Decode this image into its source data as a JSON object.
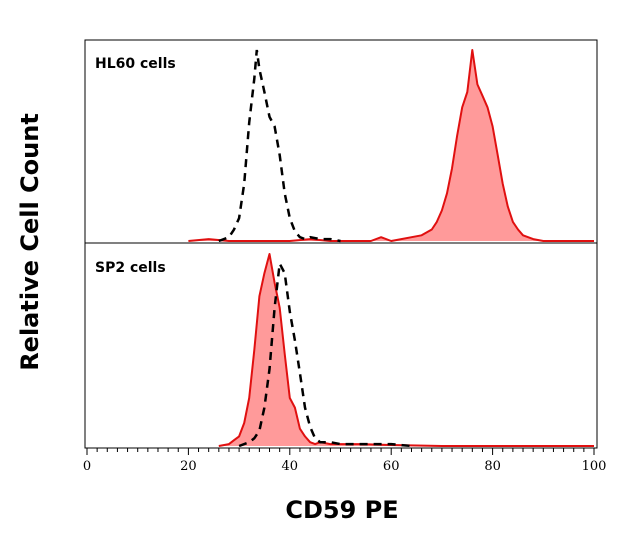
{
  "chart_data": {
    "type": "area",
    "xlabel": "CD59 PE",
    "ylabel": "Relative Cell Count",
    "xlim": [
      0,
      100
    ],
    "x_ticks": [
      "0",
      "20",
      "40",
      "60",
      "80",
      "100"
    ],
    "x_tick_values": [
      0,
      20,
      40,
      60,
      80,
      100
    ],
    "grid": false,
    "colors": {
      "stained_fill": "#ff9a9a",
      "stained_line": "#e01010",
      "control_line": "#000000"
    },
    "panels": [
      {
        "label": "HL60 cells",
        "series": [
          {
            "style": "stained-filled",
            "x": [
              20,
              24,
              28,
              36,
              40,
              44,
              48,
              56,
              58,
              60,
              62,
              64,
              66,
              68,
              69,
              70,
              71,
              72,
              73,
              74,
              75,
              76,
              77,
              78,
              79,
              80,
              81,
              82,
              83,
              84,
              85,
              86,
              87,
              88,
              90,
              94,
              100
            ],
            "y": [
              0,
              0.01,
              0,
              0,
              0,
              0.01,
              0,
              0,
              0.02,
              0,
              0.01,
              0.02,
              0.03,
              0.06,
              0.1,
              0.16,
              0.25,
              0.38,
              0.55,
              0.7,
              0.78,
              1.0,
              0.82,
              0.76,
              0.7,
              0.6,
              0.45,
              0.3,
              0.18,
              0.1,
              0.06,
              0.03,
              0.02,
              0.01,
              0,
              0,
              0
            ]
          },
          {
            "style": "control-dashed",
            "x": [
              26,
              28,
              29,
              30,
              31,
              32,
              33,
              33.5,
              34,
              35,
              36,
              37,
              38,
              39,
              40,
              41,
              42,
              43,
              44,
              46,
              48,
              50
            ],
            "y": [
              0,
              0.02,
              0.06,
              0.12,
              0.3,
              0.62,
              0.85,
              1.0,
              0.9,
              0.78,
              0.65,
              0.6,
              0.45,
              0.25,
              0.12,
              0.05,
              0.02,
              0.01,
              0.02,
              0.01,
              0.01,
              0
            ]
          }
        ]
      },
      {
        "label": "SP2 cells",
        "series": [
          {
            "style": "stained-filled",
            "x": [
              26,
              28,
              29,
              30,
              31,
              32,
              33,
              34,
              35,
              36,
              37,
              38,
              39,
              40,
              41,
              42,
              43,
              44,
              45,
              46,
              48,
              50,
              54,
              60,
              70,
              80,
              100
            ],
            "y": [
              0,
              0.01,
              0.03,
              0.05,
              0.12,
              0.25,
              0.5,
              0.78,
              0.9,
              1.0,
              0.85,
              0.72,
              0.48,
              0.25,
              0.2,
              0.09,
              0.05,
              0.02,
              0.01,
              0.02,
              0.01,
              0.01,
              0.01,
              0.005,
              0,
              0,
              0
            ]
          },
          {
            "style": "control-dashed",
            "x": [
              30,
              32,
              33,
              34,
              35,
              36,
              37,
              38,
              39,
              40,
              41,
              42,
              43,
              44,
              45,
              46,
              48,
              50,
              56,
              60,
              64
            ],
            "y": [
              0,
              0.02,
              0.04,
              0.08,
              0.2,
              0.4,
              0.72,
              0.95,
              0.9,
              0.7,
              0.55,
              0.38,
              0.2,
              0.1,
              0.04,
              0.02,
              0.02,
              0.01,
              0.01,
              0.01,
              0
            ]
          }
        ]
      }
    ]
  }
}
